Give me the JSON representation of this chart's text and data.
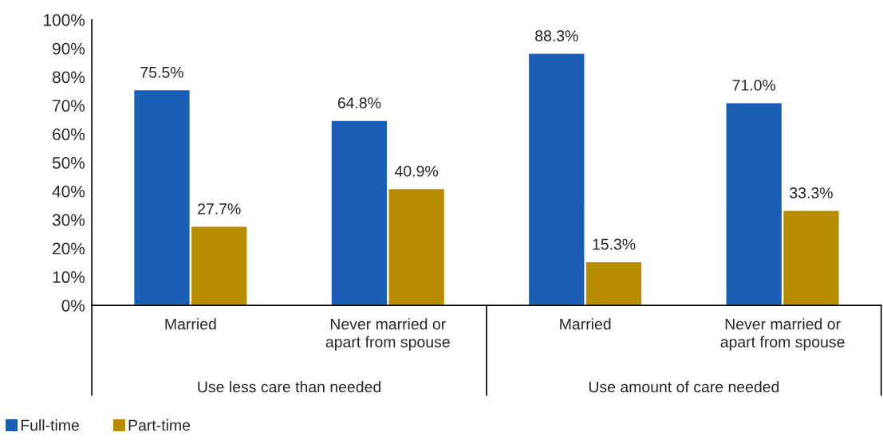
{
  "chart_data": {
    "type": "bar",
    "categories": [
      "Married",
      "Never married or\napart from spouse",
      "Married",
      "Never married or\napart from spouse"
    ],
    "series": [
      {
        "name": "Full-time",
        "color": "#1a5fb4",
        "values": [
          75.5,
          64.8,
          88.3,
          71.0
        ],
        "value_labels": [
          "75.5%",
          "64.8%",
          "88.3%",
          "71.0%"
        ]
      },
      {
        "name": "Part-time",
        "color": "#b88c00",
        "values": [
          27.7,
          40.9,
          15.3,
          33.3
        ],
        "value_labels": [
          "27.7%",
          "40.9%",
          "15.3%",
          "33.3%"
        ]
      }
    ],
    "annotations": [
      "Use less care than needed",
      "Use amount of care needed"
    ],
    "ylim": [
      0,
      100
    ],
    "yticks": [
      {
        "value": 0,
        "label": "0%"
      },
      {
        "value": 10,
        "label": "10%"
      },
      {
        "value": 20,
        "label": "20%"
      },
      {
        "value": 30,
        "label": "30%"
      },
      {
        "value": 40,
        "label": "40%"
      },
      {
        "value": 50,
        "label": "50%"
      },
      {
        "value": 60,
        "label": "60%"
      },
      {
        "value": 70,
        "label": "70%"
      },
      {
        "value": 80,
        "label": "80%"
      },
      {
        "value": 90,
        "label": "90%"
      },
      {
        "value": 100,
        "label": "100%"
      }
    ],
    "grid": false,
    "legend": "bottom left"
  }
}
